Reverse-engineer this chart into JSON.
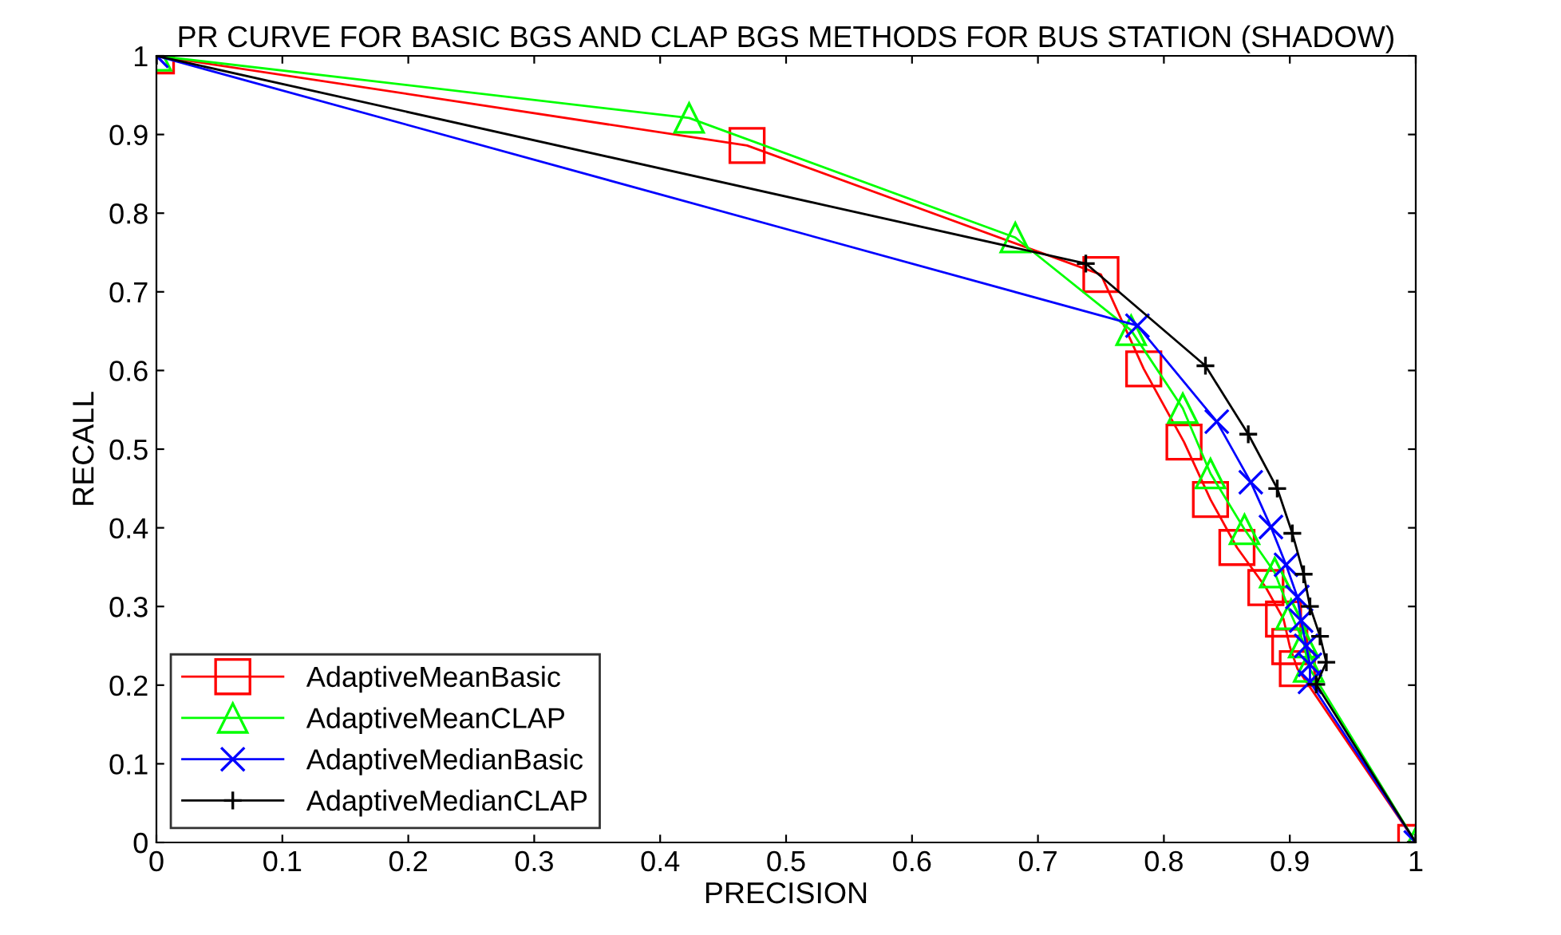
{
  "chart_data": {
    "type": "line",
    "title": "PR CURVE FOR BASIC BGS AND CLAP BGS METHODS FOR BUS STATION (SHADOW)",
    "xlabel": "PRECISION",
    "ylabel": "RECALL",
    "xlim": [
      0,
      1
    ],
    "ylim": [
      0,
      1
    ],
    "xticks": [
      0,
      0.1,
      0.2,
      0.3,
      0.4,
      0.5,
      0.6,
      0.7,
      0.8,
      0.9,
      1
    ],
    "yticks": [
      0,
      0.1,
      0.2,
      0.3,
      0.4,
      0.5,
      0.6,
      0.7,
      0.8,
      0.9,
      1
    ],
    "grid": false,
    "legend": "bottom left",
    "series": [
      {
        "name": "AdaptiveMeanBasic",
        "color": "#ff0000",
        "marker": "square",
        "x": [
          0,
          0.469,
          0.75,
          0.784,
          0.816,
          0.837,
          0.858,
          0.881,
          0.895,
          0.9,
          0.906,
          1
        ],
        "values": [
          1,
          0.886,
          0.722,
          0.602,
          0.509,
          0.436,
          0.375,
          0.324,
          0.284,
          0.249,
          0.221,
          0
        ]
      },
      {
        "name": "AdaptiveMeanCLAP",
        "color": "#00ff00",
        "marker": "triangle",
        "x": [
          0,
          0.423,
          0.682,
          0.774,
          0.815,
          0.837,
          0.864,
          0.888,
          0.901,
          0.911,
          0.915,
          1
        ],
        "values": [
          1,
          0.921,
          0.769,
          0.651,
          0.552,
          0.469,
          0.398,
          0.343,
          0.29,
          0.254,
          0.223,
          0
        ]
      },
      {
        "name": "AdaptiveMedianBasic",
        "color": "#0000ff",
        "marker": "cross",
        "x": [
          0,
          0.779,
          0.842,
          0.869,
          0.885,
          0.897,
          0.906,
          0.909,
          0.913,
          0.916,
          0.916,
          1
        ],
        "values": [
          1,
          0.657,
          0.535,
          0.458,
          0.401,
          0.353,
          0.312,
          0.282,
          0.25,
          0.226,
          0.204,
          0
        ]
      },
      {
        "name": "AdaptiveMedianCLAP",
        "color": "#000000",
        "marker": "plus",
        "x": [
          0,
          0.738,
          0.833,
          0.867,
          0.89,
          0.902,
          0.911,
          0.916,
          0.924,
          0.929,
          0.921,
          1
        ],
        "values": [
          1,
          0.736,
          0.606,
          0.519,
          0.45,
          0.393,
          0.341,
          0.3,
          0.262,
          0.229,
          0.201,
          0
        ]
      }
    ]
  }
}
